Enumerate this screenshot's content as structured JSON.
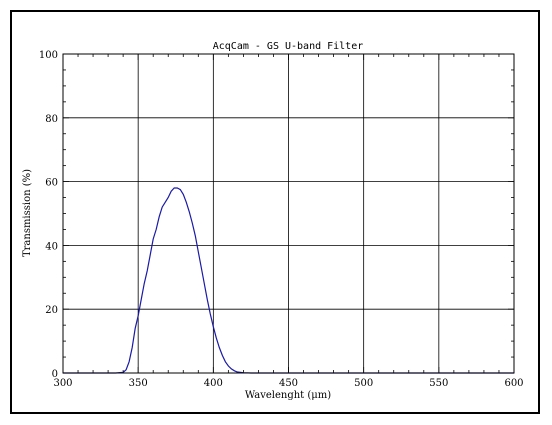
{
  "chart_data": {
    "type": "line",
    "title": "AcqCam - GS U-band Filter",
    "xlabel": "Wavelenght (μm)",
    "ylabel": "Transmission (%)",
    "xlim": [
      300,
      600
    ],
    "ylim": [
      0,
      100
    ],
    "x_ticks": [
      300,
      350,
      400,
      450,
      500,
      550,
      600
    ],
    "y_ticks": [
      0,
      20,
      40,
      60,
      80,
      100
    ],
    "grid": true,
    "line_color": "#1a1aa8",
    "series": [
      {
        "points": [
          [
            300,
            0
          ],
          [
            335,
            0
          ],
          [
            340,
            0.2
          ],
          [
            342,
            1
          ],
          [
            344,
            3.5
          ],
          [
            346,
            8
          ],
          [
            348,
            14
          ],
          [
            350,
            18
          ],
          [
            352,
            23
          ],
          [
            354,
            28
          ],
          [
            356,
            32
          ],
          [
            358,
            37
          ],
          [
            360,
            42
          ],
          [
            362,
            45
          ],
          [
            364,
            49
          ],
          [
            366,
            52
          ],
          [
            368,
            53.5
          ],
          [
            370,
            55
          ],
          [
            372,
            57
          ],
          [
            374,
            58
          ],
          [
            376,
            58
          ],
          [
            378,
            57.5
          ],
          [
            380,
            56
          ],
          [
            382,
            53.5
          ],
          [
            384,
            50.5
          ],
          [
            386,
            47
          ],
          [
            388,
            43
          ],
          [
            390,
            38
          ],
          [
            392,
            33
          ],
          [
            394,
            28
          ],
          [
            396,
            23
          ],
          [
            398,
            18.5
          ],
          [
            400,
            14.5
          ],
          [
            402,
            11
          ],
          [
            404,
            8
          ],
          [
            406,
            5.5
          ],
          [
            408,
            3.5
          ],
          [
            410,
            2.2
          ],
          [
            412,
            1.3
          ],
          [
            414,
            0.7
          ],
          [
            416,
            0.3
          ],
          [
            420,
            0.1
          ],
          [
            425,
            0
          ],
          [
            600,
            0
          ]
        ]
      }
    ]
  }
}
